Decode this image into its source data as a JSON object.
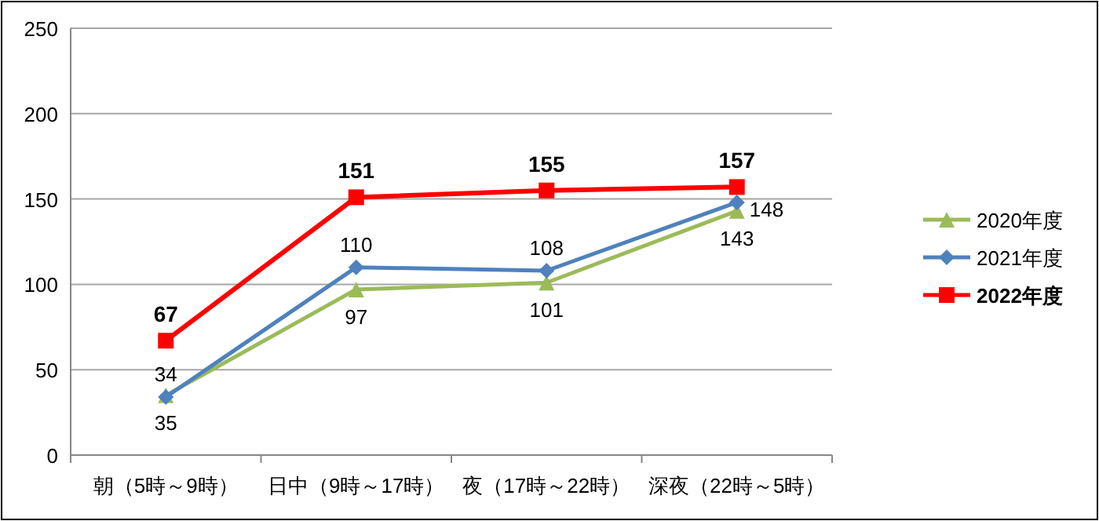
{
  "chart_data": {
    "type": "line",
    "categories": [
      "朝（5時～9時）",
      "日中（9時～17時）",
      "夜（17時～22時）",
      "深夜（22時～5時）"
    ],
    "series": [
      {
        "name": "2020年度",
        "color": "#9bbb59",
        "marker": "triangle",
        "values": [
          35,
          97,
          101,
          143
        ]
      },
      {
        "name": "2021年度",
        "color": "#4f81bd",
        "marker": "diamond",
        "values": [
          34,
          110,
          108,
          148
        ]
      },
      {
        "name": "2022年度",
        "color": "#ff0000",
        "marker": "square",
        "values": [
          67,
          151,
          155,
          157
        ]
      }
    ],
    "ylim": [
      0,
      250
    ],
    "yticks": [
      0,
      50,
      100,
      150,
      200,
      250
    ],
    "grid": "y",
    "legend": "right",
    "data_labels": true
  }
}
